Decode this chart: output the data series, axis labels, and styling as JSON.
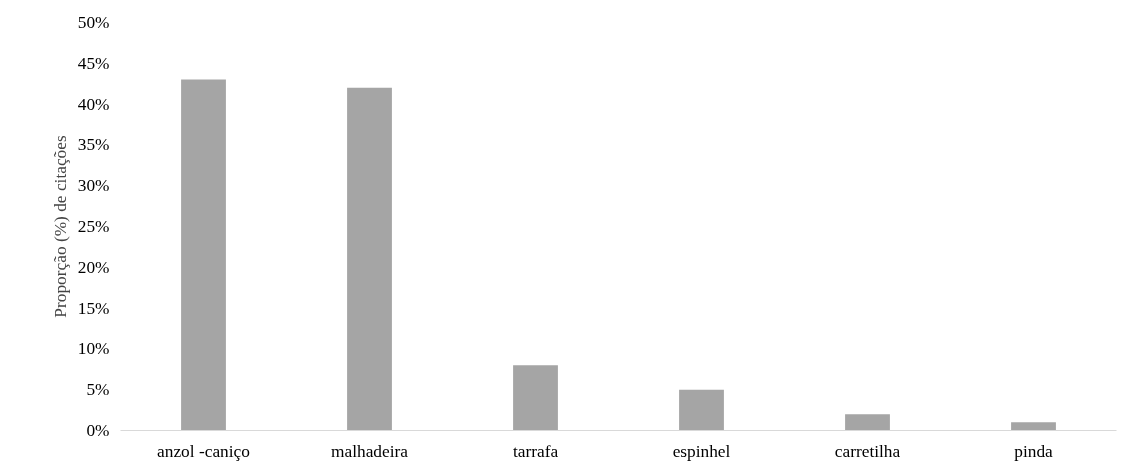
{
  "chart_data": {
    "type": "bar",
    "ylabel": "Proporção (%) de citações",
    "categories": [
      "anzol -caniço",
      "malhadeira",
      "tarrafa",
      "espinhel",
      "carretilha",
      "pinda"
    ],
    "values": [
      43,
      42,
      8,
      5,
      2,
      1
    ],
    "color": "#a5a5a5",
    "ylim": [
      0,
      50
    ],
    "yticks": [
      {
        "value": 0,
        "label": "0%"
      },
      {
        "value": 5,
        "label": "5%"
      },
      {
        "value": 10,
        "label": "10%"
      },
      {
        "value": 15,
        "label": "15%"
      },
      {
        "value": 20,
        "label": "20%"
      },
      {
        "value": 25,
        "label": "25%"
      },
      {
        "value": 30,
        "label": "30%"
      },
      {
        "value": 35,
        "label": "35%"
      },
      {
        "value": 40,
        "label": "40%"
      },
      {
        "value": 45,
        "label": "45%"
      },
      {
        "value": 50,
        "label": "50%"
      }
    ],
    "grid": false
  }
}
